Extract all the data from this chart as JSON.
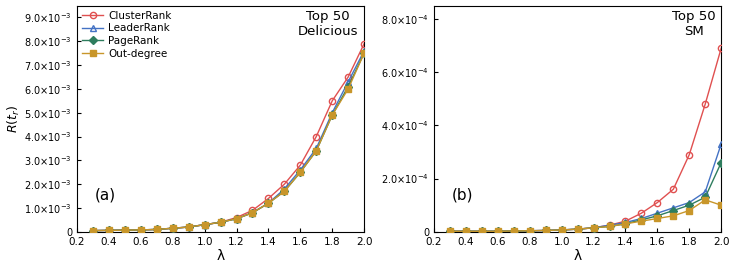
{
  "lambda_values": [
    0.3,
    0.4,
    0.5,
    0.6,
    0.7,
    0.8,
    0.9,
    1.0,
    1.1,
    1.2,
    1.3,
    1.4,
    1.5,
    1.6,
    1.7,
    1.8,
    1.9,
    2.0
  ],
  "panel_a": {
    "title": "Top 50\nDelicious",
    "label": "(a)",
    "ylim": [
      0,
      0.0095
    ],
    "yticks": [
      0,
      0.001,
      0.002,
      0.003,
      0.004,
      0.005,
      0.006,
      0.007,
      0.008,
      0.009
    ],
    "ClusterRank": [
      5e-05,
      6e-05,
      7e-05,
      8e-05,
      0.0001,
      0.00015,
      0.0002,
      0.0003,
      0.0004,
      0.0006,
      0.0009,
      0.0014,
      0.002,
      0.0028,
      0.004,
      0.0055,
      0.0065,
      0.0079
    ],
    "LeaderRank": [
      5e-05,
      6e-05,
      7e-05,
      8e-05,
      0.0001,
      0.00015,
      0.0002,
      0.0003,
      0.0004,
      0.00055,
      0.0008,
      0.0012,
      0.0018,
      0.0026,
      0.0035,
      0.005,
      0.0063,
      0.0076
    ],
    "PageRank": [
      5e-05,
      6e-05,
      7e-05,
      8e-05,
      0.0001,
      0.00015,
      0.0002,
      0.0003,
      0.0004,
      0.00055,
      0.0008,
      0.0012,
      0.0017,
      0.0025,
      0.0034,
      0.0049,
      0.0061,
      0.0075
    ],
    "OutDegree": [
      5e-05,
      6e-05,
      7e-05,
      8e-05,
      0.0001,
      0.00015,
      0.0002,
      0.0003,
      0.0004,
      0.00055,
      0.0008,
      0.0012,
      0.0017,
      0.0025,
      0.0034,
      0.0049,
      0.006,
      0.0075
    ]
  },
  "panel_b": {
    "title": "Top 50\nSM",
    "label": "(b)",
    "ylim": [
      0,
      0.00085
    ],
    "yticks": [
      0,
      0.0002,
      0.0004,
      0.0006,
      0.0008
    ],
    "ClusterRank": [
      2e-06,
      2e-06,
      2e-06,
      2e-06,
      3e-06,
      4e-06,
      5e-06,
      7e-06,
      1e-05,
      1.5e-05,
      2.5e-05,
      4e-05,
      7e-05,
      0.00011,
      0.00016,
      0.00029,
      0.00048,
      0.00069
    ],
    "LeaderRank": [
      2e-06,
      2e-06,
      2e-06,
      2e-06,
      3e-06,
      4e-06,
      5e-06,
      7e-06,
      1e-05,
      1.5e-05,
      2.5e-05,
      3.5e-05,
      5e-05,
      7e-05,
      9e-05,
      0.00011,
      0.00015,
      0.00033
    ],
    "PageRank": [
      2e-06,
      2e-06,
      2e-06,
      2e-06,
      3e-06,
      4e-06,
      5e-06,
      7e-06,
      1e-05,
      1.5e-05,
      2e-05,
      3e-05,
      4.5e-05,
      6e-05,
      8e-05,
      0.0001,
      0.00013,
      0.00026
    ],
    "OutDegree": [
      2e-06,
      2e-06,
      2e-06,
      2e-06,
      3e-06,
      4e-06,
      5e-06,
      7e-06,
      1e-05,
      1.5e-05,
      2e-05,
      3e-05,
      4e-05,
      5e-05,
      6e-05,
      8e-05,
      0.00012,
      0.0001
    ]
  },
  "colors": {
    "ClusterRank": "#e05050",
    "LeaderRank": "#4472c4",
    "PageRank": "#2e7d5e",
    "OutDegree": "#c8962a"
  },
  "markers": {
    "ClusterRank": "o",
    "LeaderRank": "^",
    "PageRank": "D",
    "OutDegree": "s"
  },
  "ylabel": "R(t_r)",
  "xlabel": "λ",
  "bg_color": "#ffffff"
}
